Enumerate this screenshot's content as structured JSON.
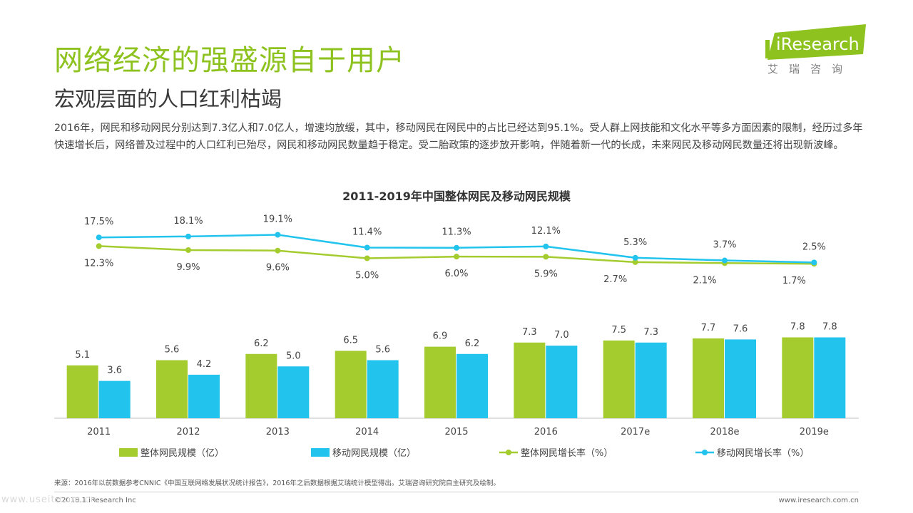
{
  "header": {
    "title": "网络经济的强盛源自于用户",
    "subtitle": "宏观层面的人口红利枯竭",
    "description": "2016年，网民和移动网民分别达到7.3亿人和7.0亿人，增速均放缓，其中，移动网民在网民中的占比已经达到95.1%。受人群上网技能和文化水平等多方面因素的限制，经历过多年快速增长后，网络普及过程中的人口红利已殆尽，网民和移动网民数量趋于稳定。受二胎政策的逐步放开影响，伴随着新一代的长成，未来网民及移动网民数量还将出现新波峰。"
  },
  "logo": {
    "text": "iResearch",
    "sub": "艾瑞咨询",
    "color": "#8dc21f"
  },
  "chart_data": {
    "type": "bar",
    "title": "2011-2019年中国整体网民及移动网民规模",
    "categories": [
      "2011",
      "2012",
      "2013",
      "2014",
      "2015",
      "2016",
      "2017e",
      "2018e",
      "2019e"
    ],
    "bar_series": [
      {
        "name": "整体网民规模（亿）",
        "values": [
          5.1,
          5.6,
          6.2,
          6.5,
          6.9,
          7.3,
          7.5,
          7.7,
          7.8
        ],
        "color": "#a4cc2e"
      },
      {
        "name": "移动网民规模（亿）",
        "values": [
          3.6,
          4.2,
          5.0,
          5.6,
          6.2,
          7.0,
          7.3,
          7.6,
          7.8
        ],
        "color": "#22c4ee"
      }
    ],
    "line_series": [
      {
        "name": "整体网民增长率（%）",
        "values": [
          12.3,
          9.9,
          9.6,
          5.0,
          6.0,
          5.9,
          2.7,
          2.1,
          1.7
        ],
        "labels": [
          "12.3%",
          "9.9%",
          "9.6%",
          "5.0%",
          "6.0%",
          "5.9%",
          "2.7%",
          "2.1%",
          "1.7%"
        ],
        "color": "#a4cc2e"
      },
      {
        "name": "移动网民增长率（%）",
        "values": [
          17.5,
          18.1,
          19.1,
          11.4,
          11.3,
          12.1,
          5.3,
          3.7,
          2.5
        ],
        "labels": [
          "17.5%",
          "18.1%",
          "19.1%",
          "11.4%",
          "11.3%",
          "12.1%",
          "5.3%",
          "3.7%",
          "2.5%"
        ],
        "color": "#22c4ee"
      }
    ],
    "legend_position": "bottom",
    "grid": false
  },
  "footer": {
    "source": "来源：2016年以前数据参考CNNIC《中国互联网络发展状况统计报告》，2016年之后数据根据艾瑞统计模型得出。艾瑞咨询研究院自主研究及绘制。",
    "copyright": "©2018.1 iResearch Inc",
    "website": "www.iresearch.com.cn",
    "watermark": "www.useit.com.cn"
  }
}
